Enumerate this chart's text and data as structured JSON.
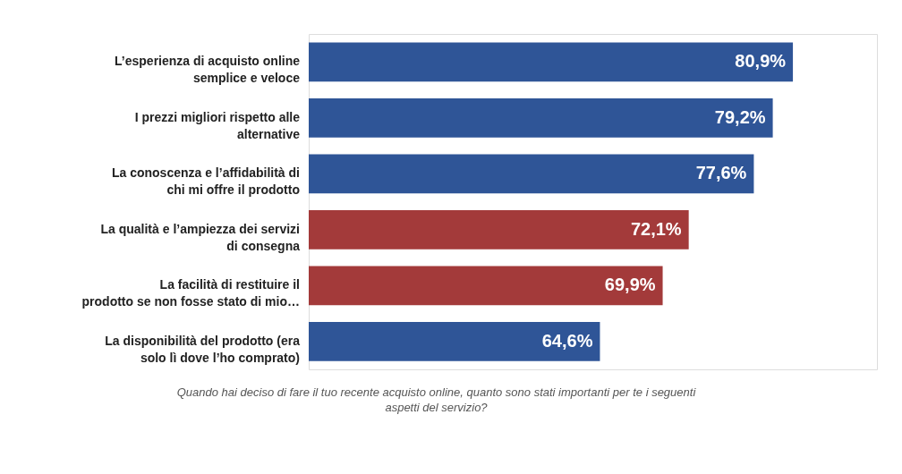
{
  "chart_data": {
    "type": "bar",
    "orientation": "horizontal",
    "categories": [
      "L’esperienza di acquisto online semplice e veloce",
      "I prezzi migliori rispetto alle alternative",
      "La conoscenza e l’affidabilità di chi mi offre il prodotto",
      "La qualità e l’ampiezza dei servizi di consegna",
      "La facilità di restituire il prodotto se non fosse stato di mio…",
      "La disponibilità del prodotto (era solo lì dove l’ho comprato)"
    ],
    "values": [
      80.9,
      79.2,
      77.6,
      72.1,
      69.9,
      64.6
    ],
    "colors": [
      "#2f5597",
      "#2f5597",
      "#2f5597",
      "#a33a3a",
      "#a33a3a",
      "#2f5597"
    ],
    "value_labels": [
      "80,9%",
      "79,2%",
      "77,6%",
      "72,1%",
      "69,9%",
      "64,6%"
    ],
    "xlim": [
      40,
      88
    ],
    "tick_labels": false,
    "grid": false,
    "annotations": [
      "Quando hai deciso di fare il tuo recente acquisto online, quanto sono stati importanti per te i seguenti aspetti del servizio?"
    ]
  }
}
